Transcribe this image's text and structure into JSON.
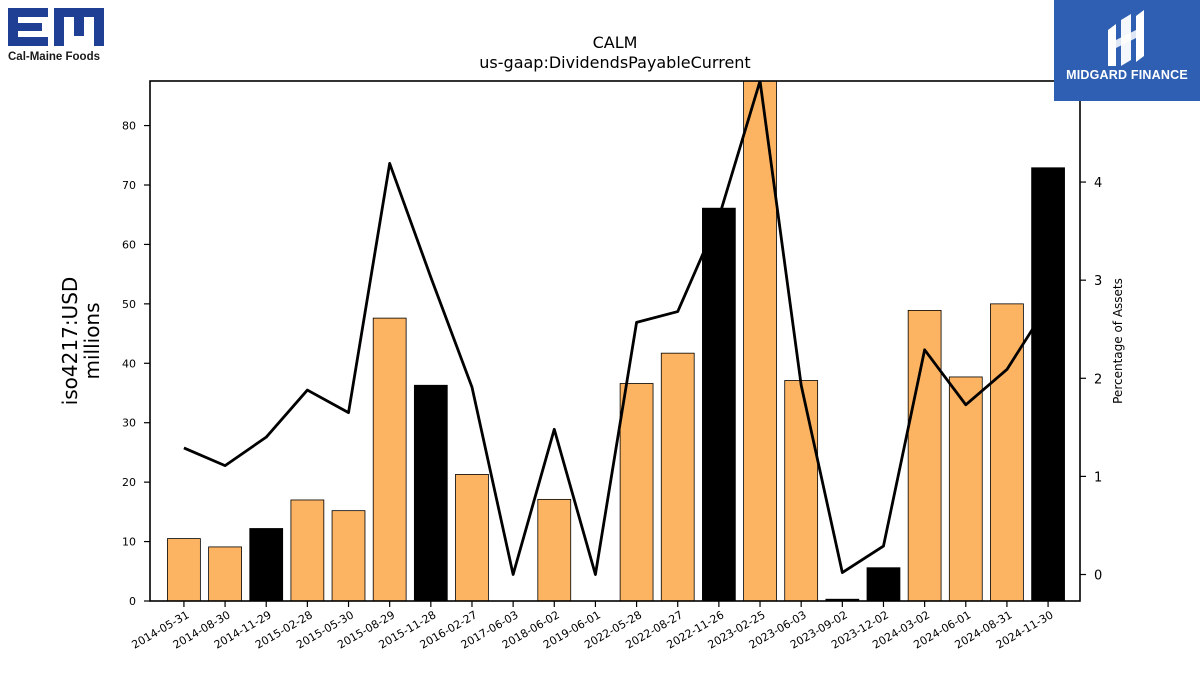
{
  "logos": {
    "left": {
      "text": "Cal-Maine Foods",
      "color": "#1f3f95"
    },
    "right": {
      "text": "MIDGARD FINANCE",
      "color": "#2f5fb3"
    }
  },
  "chart_data": {
    "type": "bar",
    "title": "CALM",
    "subtitle": "us-gaap:DividendsPayableCurrent",
    "ylabel": "iso4217:USD\nmillions",
    "y2label": "Percentage of Assets",
    "ylim": [
      0,
      87.5
    ],
    "y2lim": [
      -0.27,
      5.03
    ],
    "yticks": [
      0,
      10,
      20,
      30,
      40,
      50,
      60,
      70,
      80
    ],
    "y2ticks": [
      0,
      1,
      2,
      3,
      4
    ],
    "categories": [
      "2014-05-31",
      "2014-08-30",
      "2014-11-29",
      "2015-02-28",
      "2015-05-30",
      "2015-08-29",
      "2015-11-28",
      "2016-02-27",
      "2017-06-03",
      "2018-06-02",
      "2019-06-01",
      "2022-05-28",
      "2022-08-27",
      "2022-11-26",
      "2023-02-25",
      "2023-06-03",
      "2023-09-02",
      "2023-12-02",
      "2024-03-02",
      "2024-06-01",
      "2024-08-31",
      "2024-11-30"
    ],
    "series": [
      {
        "values": [
          10.5,
          9.1,
          12.2,
          17.0,
          15.2,
          47.6,
          36.3,
          21.3,
          0,
          17.1,
          0,
          36.6,
          41.7,
          66.1,
          88.0,
          37.1,
          0.3,
          5.6,
          48.9,
          37.7,
          50.0,
          72.9
        ],
        "colors": [
          "#fdb462",
          "#fdb462",
          "#000000",
          "#fdb462",
          "#fdb462",
          "#fdb462",
          "#000000",
          "#fdb462",
          "#fdb462",
          "#fdb462",
          "#fdb462",
          "#fdb462",
          "#fdb462",
          "#000000",
          "#fdb462",
          "#fdb462",
          "#000000",
          "#000000",
          "#fdb462",
          "#fdb462",
          "#fdb462",
          "#000000"
        ]
      },
      {
        "axis": "right",
        "type": "line",
        "color": "#000000",
        "values": [
          1.29,
          1.11,
          1.4,
          1.88,
          1.65,
          4.19,
          3.03,
          1.91,
          0.0,
          1.48,
          0.0,
          2.57,
          2.68,
          3.64,
          5.03,
          1.93,
          0.02,
          0.29,
          2.29,
          1.73,
          2.09,
          2.75
        ]
      }
    ]
  }
}
